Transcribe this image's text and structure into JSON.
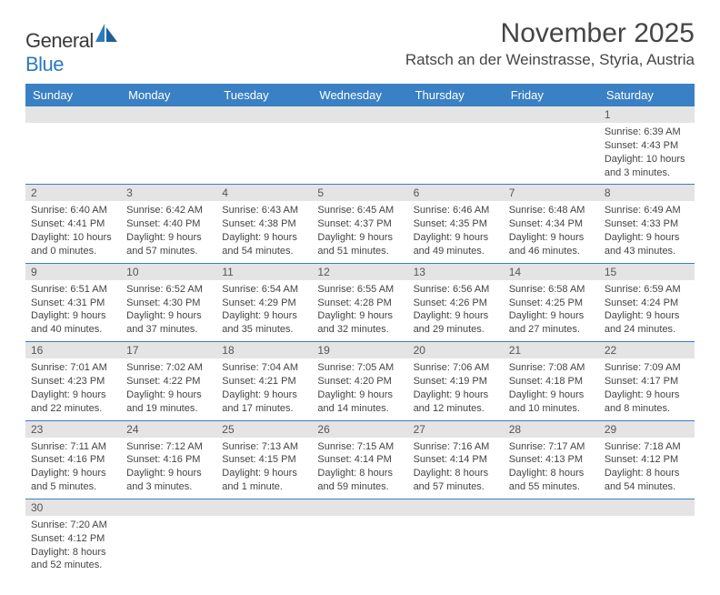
{
  "logo": {
    "text_general": "Genera",
    "text_l": "l",
    "text_blue": "Blue"
  },
  "title": "November 2025",
  "location": "Ratsch an der Weinstrasse, Styria, Austria",
  "colors": {
    "header_bg": "#3a80c4",
    "header_text": "#ffffff",
    "daynum_bg": "#e4e4e4",
    "daynum_text": "#555555",
    "cell_text": "#444444",
    "rule": "#3a80c4",
    "background": "#ffffff",
    "title_text": "#454545"
  },
  "day_headers": [
    "Sunday",
    "Monday",
    "Tuesday",
    "Wednesday",
    "Thursday",
    "Friday",
    "Saturday"
  ],
  "weeks": [
    [
      null,
      null,
      null,
      null,
      null,
      null,
      {
        "n": "1",
        "sunrise": "Sunrise: 6:39 AM",
        "sunset": "Sunset: 4:43 PM",
        "daylight": "Daylight: 10 hours and 3 minutes."
      }
    ],
    [
      {
        "n": "2",
        "sunrise": "Sunrise: 6:40 AM",
        "sunset": "Sunset: 4:41 PM",
        "daylight": "Daylight: 10 hours and 0 minutes."
      },
      {
        "n": "3",
        "sunrise": "Sunrise: 6:42 AM",
        "sunset": "Sunset: 4:40 PM",
        "daylight": "Daylight: 9 hours and 57 minutes."
      },
      {
        "n": "4",
        "sunrise": "Sunrise: 6:43 AM",
        "sunset": "Sunset: 4:38 PM",
        "daylight": "Daylight: 9 hours and 54 minutes."
      },
      {
        "n": "5",
        "sunrise": "Sunrise: 6:45 AM",
        "sunset": "Sunset: 4:37 PM",
        "daylight": "Daylight: 9 hours and 51 minutes."
      },
      {
        "n": "6",
        "sunrise": "Sunrise: 6:46 AM",
        "sunset": "Sunset: 4:35 PM",
        "daylight": "Daylight: 9 hours and 49 minutes."
      },
      {
        "n": "7",
        "sunrise": "Sunrise: 6:48 AM",
        "sunset": "Sunset: 4:34 PM",
        "daylight": "Daylight: 9 hours and 46 minutes."
      },
      {
        "n": "8",
        "sunrise": "Sunrise: 6:49 AM",
        "sunset": "Sunset: 4:33 PM",
        "daylight": "Daylight: 9 hours and 43 minutes."
      }
    ],
    [
      {
        "n": "9",
        "sunrise": "Sunrise: 6:51 AM",
        "sunset": "Sunset: 4:31 PM",
        "daylight": "Daylight: 9 hours and 40 minutes."
      },
      {
        "n": "10",
        "sunrise": "Sunrise: 6:52 AM",
        "sunset": "Sunset: 4:30 PM",
        "daylight": "Daylight: 9 hours and 37 minutes."
      },
      {
        "n": "11",
        "sunrise": "Sunrise: 6:54 AM",
        "sunset": "Sunset: 4:29 PM",
        "daylight": "Daylight: 9 hours and 35 minutes."
      },
      {
        "n": "12",
        "sunrise": "Sunrise: 6:55 AM",
        "sunset": "Sunset: 4:28 PM",
        "daylight": "Daylight: 9 hours and 32 minutes."
      },
      {
        "n": "13",
        "sunrise": "Sunrise: 6:56 AM",
        "sunset": "Sunset: 4:26 PM",
        "daylight": "Daylight: 9 hours and 29 minutes."
      },
      {
        "n": "14",
        "sunrise": "Sunrise: 6:58 AM",
        "sunset": "Sunset: 4:25 PM",
        "daylight": "Daylight: 9 hours and 27 minutes."
      },
      {
        "n": "15",
        "sunrise": "Sunrise: 6:59 AM",
        "sunset": "Sunset: 4:24 PM",
        "daylight": "Daylight: 9 hours and 24 minutes."
      }
    ],
    [
      {
        "n": "16",
        "sunrise": "Sunrise: 7:01 AM",
        "sunset": "Sunset: 4:23 PM",
        "daylight": "Daylight: 9 hours and 22 minutes."
      },
      {
        "n": "17",
        "sunrise": "Sunrise: 7:02 AM",
        "sunset": "Sunset: 4:22 PM",
        "daylight": "Daylight: 9 hours and 19 minutes."
      },
      {
        "n": "18",
        "sunrise": "Sunrise: 7:04 AM",
        "sunset": "Sunset: 4:21 PM",
        "daylight": "Daylight: 9 hours and 17 minutes."
      },
      {
        "n": "19",
        "sunrise": "Sunrise: 7:05 AM",
        "sunset": "Sunset: 4:20 PM",
        "daylight": "Daylight: 9 hours and 14 minutes."
      },
      {
        "n": "20",
        "sunrise": "Sunrise: 7:06 AM",
        "sunset": "Sunset: 4:19 PM",
        "daylight": "Daylight: 9 hours and 12 minutes."
      },
      {
        "n": "21",
        "sunrise": "Sunrise: 7:08 AM",
        "sunset": "Sunset: 4:18 PM",
        "daylight": "Daylight: 9 hours and 10 minutes."
      },
      {
        "n": "22",
        "sunrise": "Sunrise: 7:09 AM",
        "sunset": "Sunset: 4:17 PM",
        "daylight": "Daylight: 9 hours and 8 minutes."
      }
    ],
    [
      {
        "n": "23",
        "sunrise": "Sunrise: 7:11 AM",
        "sunset": "Sunset: 4:16 PM",
        "daylight": "Daylight: 9 hours and 5 minutes."
      },
      {
        "n": "24",
        "sunrise": "Sunrise: 7:12 AM",
        "sunset": "Sunset: 4:16 PM",
        "daylight": "Daylight: 9 hours and 3 minutes."
      },
      {
        "n": "25",
        "sunrise": "Sunrise: 7:13 AM",
        "sunset": "Sunset: 4:15 PM",
        "daylight": "Daylight: 9 hours and 1 minute."
      },
      {
        "n": "26",
        "sunrise": "Sunrise: 7:15 AM",
        "sunset": "Sunset: 4:14 PM",
        "daylight": "Daylight: 8 hours and 59 minutes."
      },
      {
        "n": "27",
        "sunrise": "Sunrise: 7:16 AM",
        "sunset": "Sunset: 4:14 PM",
        "daylight": "Daylight: 8 hours and 57 minutes."
      },
      {
        "n": "28",
        "sunrise": "Sunrise: 7:17 AM",
        "sunset": "Sunset: 4:13 PM",
        "daylight": "Daylight: 8 hours and 55 minutes."
      },
      {
        "n": "29",
        "sunrise": "Sunrise: 7:18 AM",
        "sunset": "Sunset: 4:12 PM",
        "daylight": "Daylight: 8 hours and 54 minutes."
      }
    ],
    [
      {
        "n": "30",
        "sunrise": "Sunrise: 7:20 AM",
        "sunset": "Sunset: 4:12 PM",
        "daylight": "Daylight: 8 hours and 52 minutes."
      },
      null,
      null,
      null,
      null,
      null,
      null
    ]
  ]
}
